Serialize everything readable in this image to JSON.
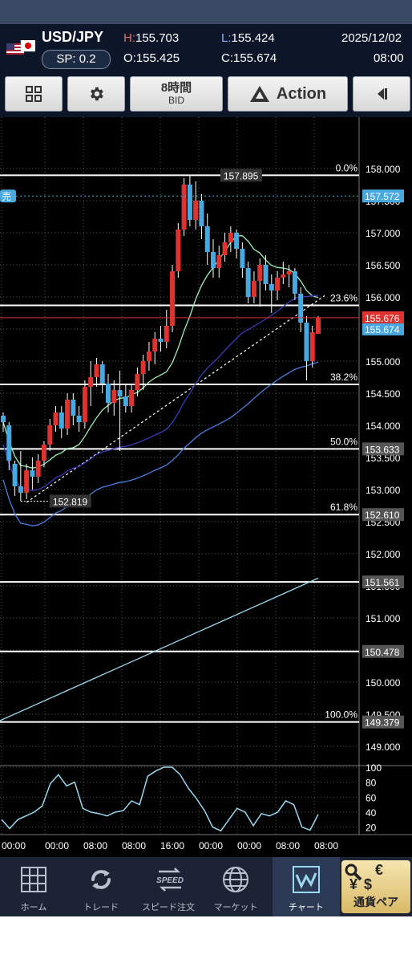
{
  "quote": {
    "pair": "USD/JPY",
    "spread": "SP: 0.2",
    "high_label": "H:",
    "high": "155.703",
    "low_label": "L:",
    "low": "155.424",
    "open_label": "O:",
    "open": "155.425",
    "close_label": "C:",
    "close": "155.674",
    "date": "2025/12/02",
    "time": "08:00"
  },
  "toolbar": {
    "timeframe": "8時間",
    "price_type": "BID",
    "action_label": "Action"
  },
  "chart_data": {
    "type": "candlestick",
    "ylim": [
      148.8,
      158.8
    ],
    "y_ticks": [
      "158.000",
      "157.500",
      "157.000",
      "156.500",
      "156.000",
      "155.500",
      "155.000",
      "154.500",
      "154.000",
      "153.500",
      "153.000",
      "152.500",
      "152.000",
      "151.500",
      "151.000",
      "150.500",
      "150.000",
      "149.500",
      "149.000"
    ],
    "y_tick_values": [
      158.0,
      157.5,
      157.0,
      156.5,
      156.0,
      155.5,
      155.0,
      154.5,
      154.0,
      153.5,
      153.0,
      152.5,
      152.0,
      151.5,
      151.0,
      150.5,
      150.0,
      149.5,
      149.0
    ],
    "x_ticks": [
      "00:00",
      "00:00",
      "08:00",
      "08:00",
      "16:00",
      "00:00",
      "00:00",
      "08:00",
      "08:00"
    ],
    "fib_levels": [
      {
        "pct": "0.0%",
        "value": 157.895
      },
      {
        "pct": "23.6%",
        "value": 155.868
      },
      {
        "pct": "38.2%",
        "value": 154.637
      },
      {
        "pct": "50.0%",
        "value": 153.633
      },
      {
        "pct": "61.8%",
        "value": 152.61
      },
      {
        "level": "151.561",
        "value": 151.561
      },
      {
        "level": "150.478",
        "value": 150.478
      },
      {
        "pct": "100.0%",
        "value": 149.379
      }
    ],
    "price_tags": {
      "sell_label": "売",
      "sell_price": "157.572",
      "sell_value": 157.572,
      "red_price": "155.676",
      "red_value": 155.676,
      "blue_price": "155.674",
      "blue_value": 155.674,
      "fib_tags": [
        "153.633",
        "152.610",
        "151.561",
        "150.478",
        "149.379"
      ]
    },
    "annotations": {
      "high": "157.895",
      "low": "152.819"
    },
    "candles": [
      {
        "o": 154.15,
        "h": 154.2,
        "l": 153.9,
        "c": 154.05
      },
      {
        "o": 154.0,
        "h": 154.05,
        "l": 153.3,
        "c": 153.45
      },
      {
        "o": 153.4,
        "h": 153.45,
        "l": 152.9,
        "c": 153.05
      },
      {
        "o": 153.05,
        "h": 153.6,
        "l": 152.82,
        "c": 152.95
      },
      {
        "o": 152.95,
        "h": 153.4,
        "l": 152.85,
        "c": 153.3
      },
      {
        "o": 153.3,
        "h": 153.5,
        "l": 153.0,
        "c": 153.2
      },
      {
        "o": 153.2,
        "h": 153.55,
        "l": 153.1,
        "c": 153.45
      },
      {
        "o": 153.45,
        "h": 153.75,
        "l": 153.35,
        "c": 153.7
      },
      {
        "o": 153.7,
        "h": 154.1,
        "l": 153.6,
        "c": 154.0
      },
      {
        "o": 154.0,
        "h": 154.3,
        "l": 153.9,
        "c": 154.2
      },
      {
        "o": 154.2,
        "h": 154.3,
        "l": 153.8,
        "c": 153.95
      },
      {
        "o": 153.95,
        "h": 154.5,
        "l": 153.85,
        "c": 154.4
      },
      {
        "o": 154.4,
        "h": 154.5,
        "l": 154.0,
        "c": 154.15
      },
      {
        "o": 154.15,
        "h": 154.3,
        "l": 153.9,
        "c": 154.05
      },
      {
        "o": 154.05,
        "h": 154.7,
        "l": 153.95,
        "c": 154.6
      },
      {
        "o": 154.6,
        "h": 155.0,
        "l": 154.3,
        "c": 154.75
      },
      {
        "o": 154.75,
        "h": 155.05,
        "l": 154.6,
        "c": 154.95
      },
      {
        "o": 154.95,
        "h": 155.0,
        "l": 154.5,
        "c": 154.65
      },
      {
        "o": 154.65,
        "h": 154.8,
        "l": 154.2,
        "c": 154.35
      },
      {
        "o": 154.35,
        "h": 154.7,
        "l": 154.15,
        "c": 154.55
      },
      {
        "o": 154.55,
        "h": 154.85,
        "l": 153.6,
        "c": 154.45
      },
      {
        "o": 154.45,
        "h": 154.65,
        "l": 154.2,
        "c": 154.3
      },
      {
        "o": 154.3,
        "h": 154.65,
        "l": 154.2,
        "c": 154.55
      },
      {
        "o": 154.55,
        "h": 154.9,
        "l": 154.45,
        "c": 154.8
      },
      {
        "o": 154.8,
        "h": 155.1,
        "l": 154.55,
        "c": 155.0
      },
      {
        "o": 155.0,
        "h": 155.3,
        "l": 154.85,
        "c": 155.15
      },
      {
        "o": 155.15,
        "h": 155.45,
        "l": 154.95,
        "c": 155.35
      },
      {
        "o": 155.35,
        "h": 155.55,
        "l": 155.15,
        "c": 155.3
      },
      {
        "o": 155.3,
        "h": 155.8,
        "l": 155.2,
        "c": 155.55
      },
      {
        "o": 155.55,
        "h": 156.5,
        "l": 155.45,
        "c": 156.4
      },
      {
        "o": 156.4,
        "h": 157.15,
        "l": 156.3,
        "c": 157.05
      },
      {
        "o": 157.05,
        "h": 157.85,
        "l": 156.95,
        "c": 157.75
      },
      {
        "o": 157.75,
        "h": 157.9,
        "l": 157.1,
        "c": 157.2
      },
      {
        "o": 157.2,
        "h": 157.8,
        "l": 157.05,
        "c": 157.5
      },
      {
        "o": 157.5,
        "h": 157.6,
        "l": 156.9,
        "c": 157.1
      },
      {
        "o": 157.1,
        "h": 157.3,
        "l": 156.5,
        "c": 156.7
      },
      {
        "o": 156.7,
        "h": 156.9,
        "l": 156.3,
        "c": 156.45
      },
      {
        "o": 156.45,
        "h": 156.8,
        "l": 156.3,
        "c": 156.65
      },
      {
        "o": 156.65,
        "h": 157.0,
        "l": 156.55,
        "c": 156.85
      },
      {
        "o": 156.85,
        "h": 157.1,
        "l": 156.7,
        "c": 157.0
      },
      {
        "o": 157.0,
        "h": 157.05,
        "l": 156.6,
        "c": 156.75
      },
      {
        "o": 156.75,
        "h": 156.85,
        "l": 156.3,
        "c": 156.45
      },
      {
        "o": 156.45,
        "h": 156.55,
        "l": 155.9,
        "c": 156.0
      },
      {
        "o": 156.0,
        "h": 156.4,
        "l": 155.9,
        "c": 156.25
      },
      {
        "o": 156.25,
        "h": 156.6,
        "l": 155.85,
        "c": 156.5
      },
      {
        "o": 156.5,
        "h": 156.65,
        "l": 156.1,
        "c": 156.2
      },
      {
        "o": 156.2,
        "h": 156.35,
        "l": 155.75,
        "c": 156.1
      },
      {
        "o": 156.1,
        "h": 156.4,
        "l": 155.95,
        "c": 156.3
      },
      {
        "o": 156.3,
        "h": 156.55,
        "l": 156.2,
        "c": 156.35
      },
      {
        "o": 156.35,
        "h": 156.5,
        "l": 156.15,
        "c": 156.4
      },
      {
        "o": 156.4,
        "h": 156.45,
        "l": 155.95,
        "c": 156.05
      },
      {
        "o": 156.05,
        "h": 156.15,
        "l": 155.45,
        "c": 155.6
      },
      {
        "o": 155.6,
        "h": 155.7,
        "l": 154.7,
        "c": 155.0
      },
      {
        "o": 155.0,
        "h": 155.55,
        "l": 154.9,
        "c": 155.45
      },
      {
        "o": 155.425,
        "h": 155.703,
        "l": 155.424,
        "c": 155.674
      }
    ],
    "oscillator": {
      "y_ticks": [
        "100",
        "80",
        "60",
        "40",
        "20"
      ],
      "y_tick_values": [
        100,
        80,
        60,
        40,
        20
      ],
      "values": [
        30,
        18,
        30,
        35,
        40,
        48,
        78,
        90,
        75,
        80,
        45,
        40,
        38,
        35,
        40,
        42,
        55,
        50,
        88,
        95,
        100,
        100,
        90,
        72,
        58,
        42,
        20,
        15,
        30,
        45,
        40,
        22,
        38,
        35,
        40,
        55,
        50,
        20,
        16,
        37
      ]
    }
  },
  "nav": {
    "items": [
      {
        "label": "ホーム"
      },
      {
        "label": "トレード"
      },
      {
        "label": "スピード注文"
      },
      {
        "label": "マーケット"
      },
      {
        "label": "チャート"
      }
    ],
    "speed_icon_text": "SPEED",
    "pair_button_label": "通貨ペア",
    "pair_button_symbols": [
      "€",
      "¥",
      "$"
    ]
  },
  "colors": {
    "up": "#e0322e",
    "down": "#48a8e0",
    "ma_green": "#9cf0b8",
    "ma_purple": "#3a3ab8",
    "ma_blue": "#4a7ee0",
    "ma_cyan": "#9ad8f0",
    "osc": "#9ad8f0"
  }
}
